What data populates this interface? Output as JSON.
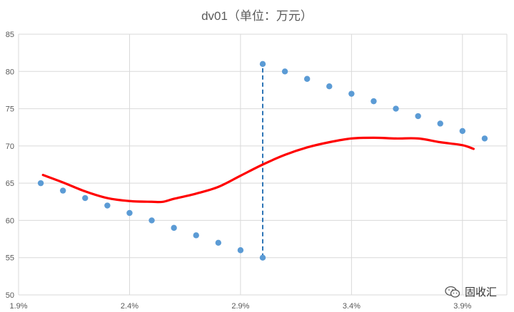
{
  "chart_data": {
    "type": "scatter",
    "title": "dv01（单位：万元）",
    "xlabel": "",
    "ylabel": "",
    "xlim": [
      0.019,
      0.041
    ],
    "ylim": [
      50,
      85
    ],
    "x_ticks": [
      0.019,
      0.024,
      0.029,
      0.034,
      0.039
    ],
    "x_tick_labels": [
      "1.9%",
      "2.4%",
      "2.9%",
      "3.4%",
      "3.9%"
    ],
    "y_ticks": [
      50,
      55,
      60,
      65,
      70,
      75,
      80,
      85
    ],
    "y_tick_labels": [
      "50",
      "55",
      "60",
      "65",
      "70",
      "75",
      "80",
      "85"
    ],
    "grid": true,
    "series": [
      {
        "kind": "points",
        "color": "#5b9bd5",
        "x": [
          0.02,
          0.021,
          0.022,
          0.023,
          0.024,
          0.025,
          0.026,
          0.027,
          0.028,
          0.029,
          0.03,
          0.03,
          0.031,
          0.032,
          0.033,
          0.034,
          0.035,
          0.036,
          0.037,
          0.038,
          0.039,
          0.04
        ],
        "y": [
          65,
          64,
          63,
          62,
          61,
          60,
          59,
          58,
          57,
          56,
          55,
          81,
          80,
          79,
          78,
          77,
          76,
          75,
          74,
          73,
          72,
          71
        ]
      },
      {
        "kind": "curve",
        "color": "#ff0000",
        "x": [
          0.0201,
          0.021,
          0.022,
          0.023,
          0.024,
          0.025,
          0.0255,
          0.026,
          0.027,
          0.028,
          0.029,
          0.03,
          0.031,
          0.032,
          0.033,
          0.034,
          0.035,
          0.036,
          0.037,
          0.038,
          0.039,
          0.0395
        ],
        "y": [
          66.1,
          65.1,
          63.9,
          63.0,
          62.6,
          62.5,
          62.5,
          62.9,
          63.6,
          64.5,
          66.0,
          67.5,
          68.8,
          69.8,
          70.5,
          71.0,
          71.1,
          71.0,
          71.0,
          70.5,
          70.1,
          69.6
        ]
      },
      {
        "kind": "dashed-vertical",
        "color": "#2e75b6",
        "x": [
          0.03,
          0.03
        ],
        "y": [
          55,
          81
        ]
      }
    ]
  },
  "watermark": {
    "icon": "wechat-icon",
    "text": "固收汇"
  }
}
